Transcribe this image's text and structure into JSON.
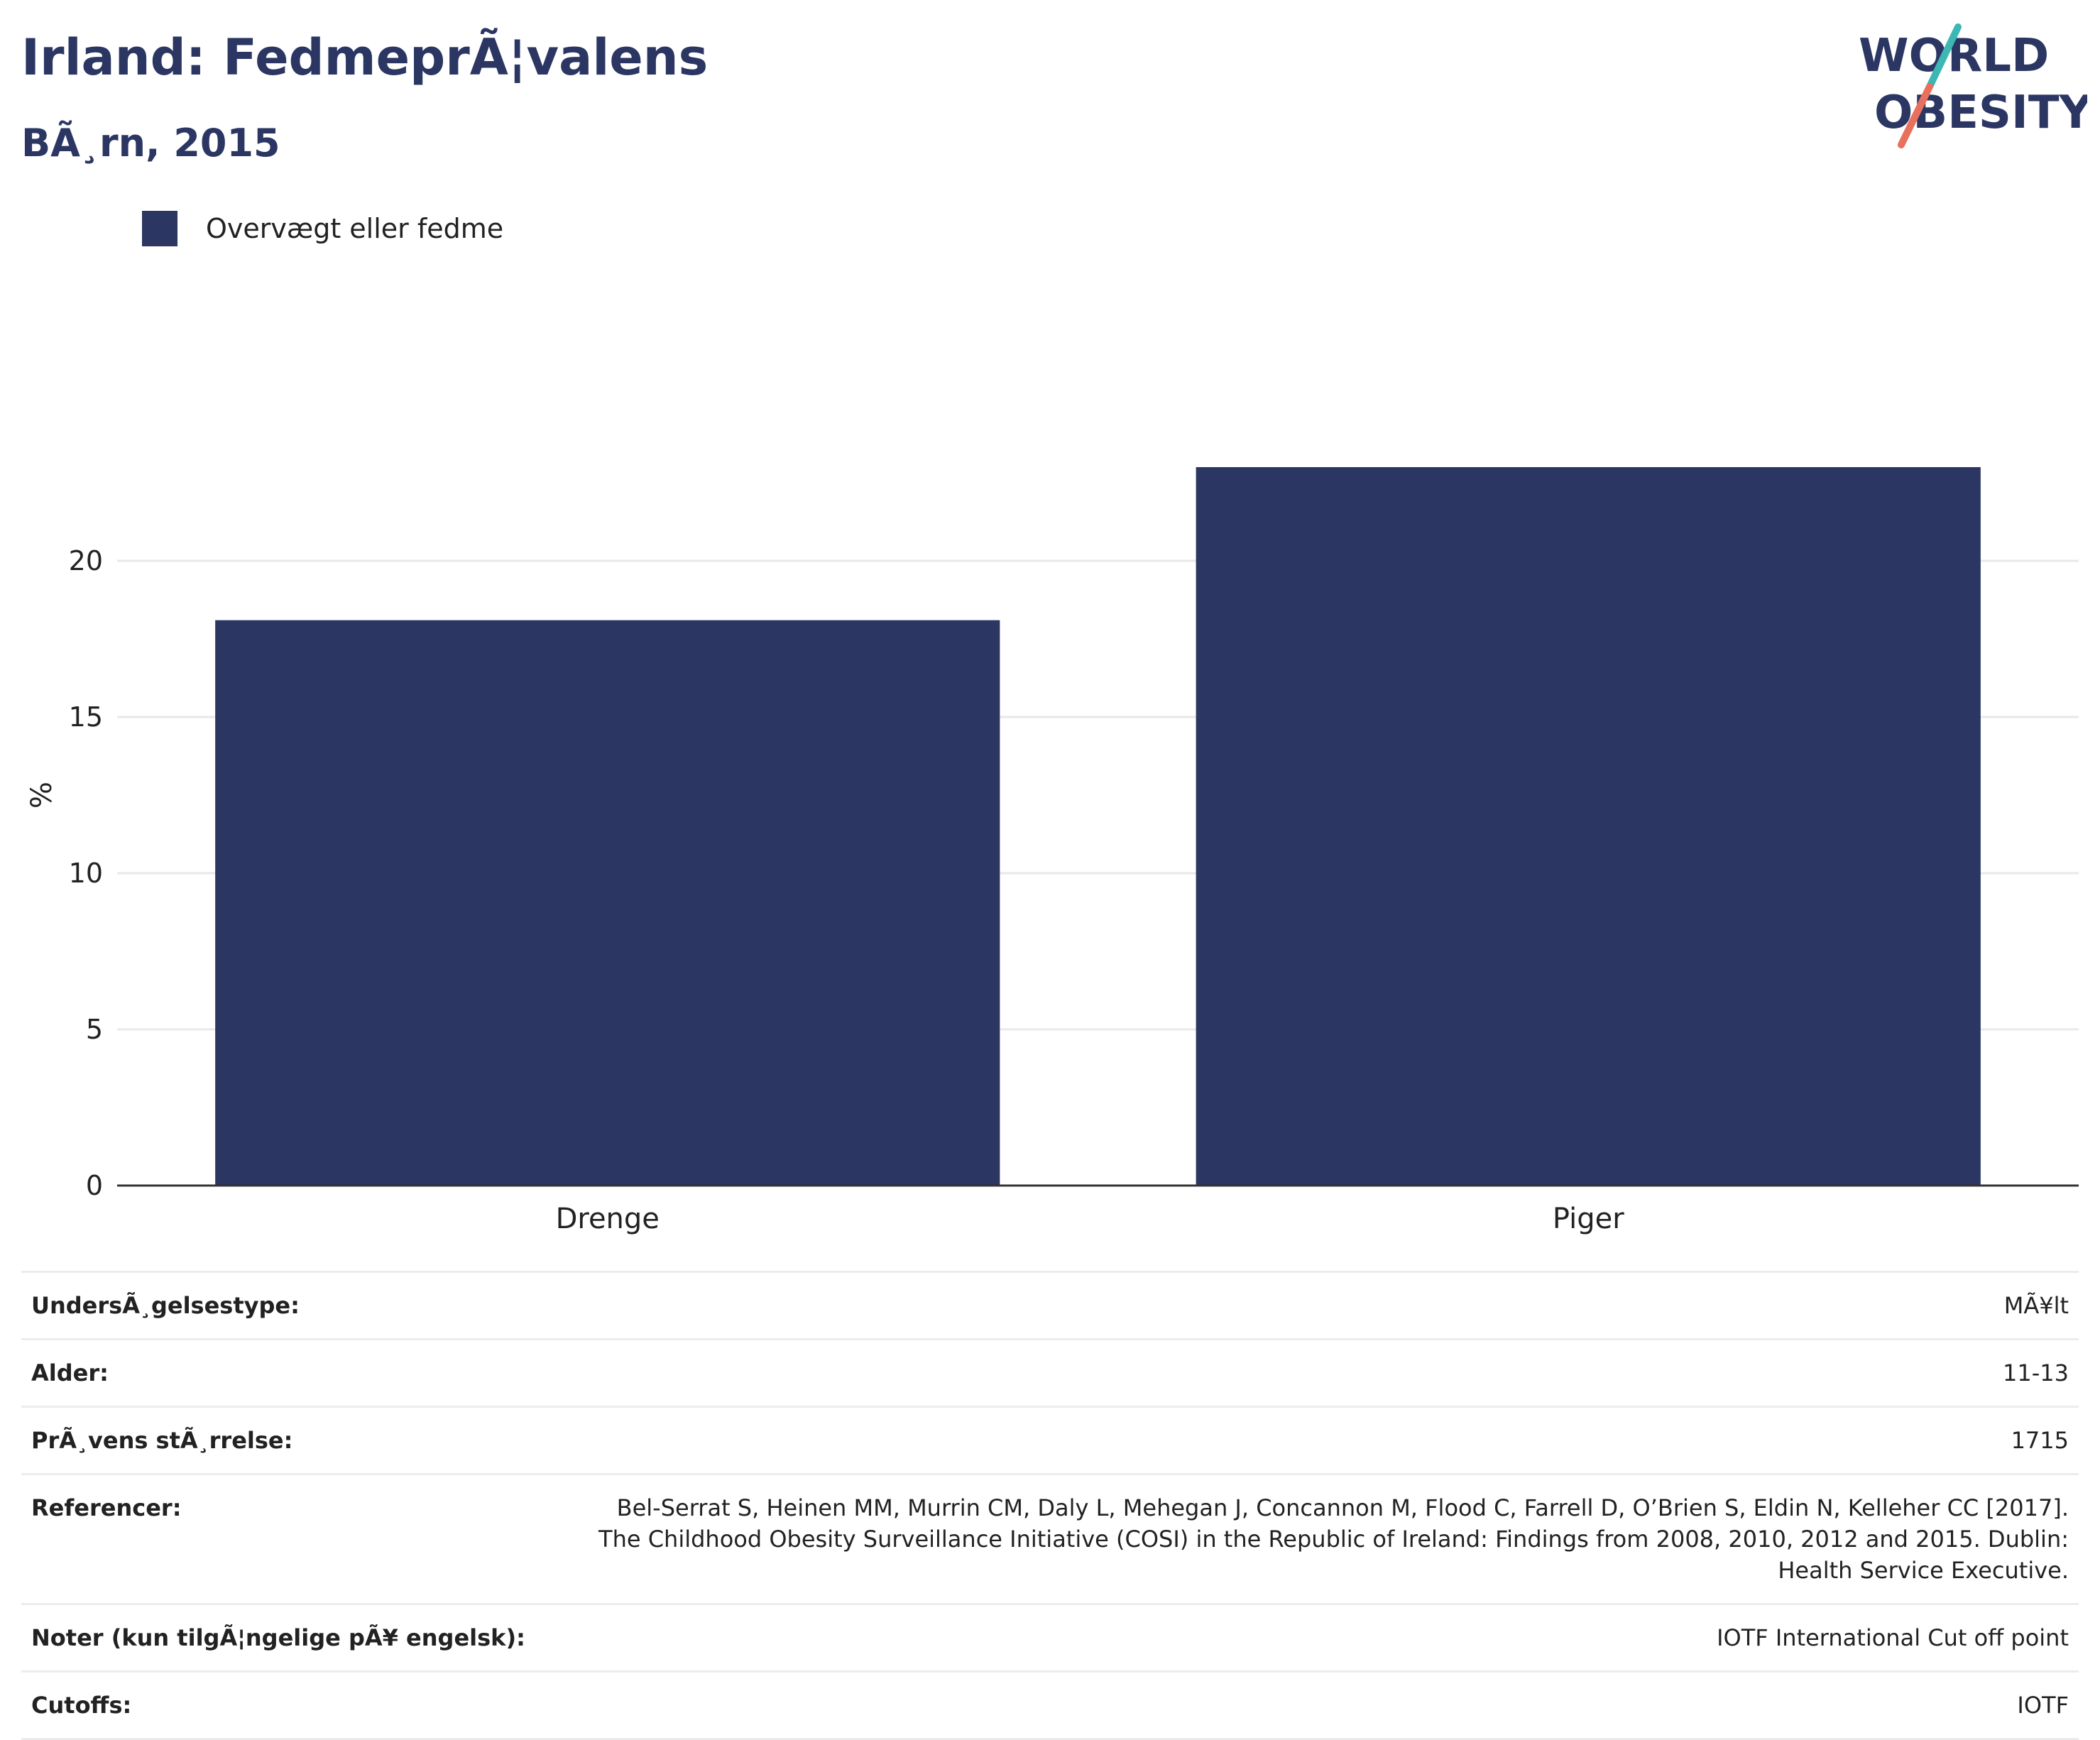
{
  "header": {
    "title": "Irland: FedmeprÃ¦valens",
    "subtitle": "BÃ¸rn, 2015"
  },
  "logo": {
    "line1": "WORLD",
    "line2": "OBESITY",
    "colors": {
      "text": "#2b3663",
      "slash_top": "#3cb7b3",
      "slash_bottom": "#e8705c"
    }
  },
  "colors": {
    "bar": "#2b3663",
    "grid": "#e8e8e8",
    "axis": "#333333"
  },
  "chart_data": {
    "type": "bar",
    "categories": [
      "Drenge",
      "Piger"
    ],
    "series": [
      {
        "name": "Overvægt eller fedme",
        "values": [
          18.1,
          23.0
        ]
      }
    ],
    "ylabel": "%",
    "ylim": [
      0,
      25
    ],
    "yticks": [
      0,
      5,
      10,
      15,
      20
    ],
    "grid": true,
    "legend_position": "top-left"
  },
  "info": {
    "rows": [
      {
        "label": "UndersÃ¸gelsestype:",
        "value": "MÃ¥lt"
      },
      {
        "label": "Alder:",
        "value": "11-13"
      },
      {
        "label": "PrÃ¸vens stÃ¸rrelse:",
        "value": "1715"
      },
      {
        "label": "Referencer:",
        "value": "Bel-Serrat S, Heinen MM, Murrin CM, Daly L, Mehegan J, Concannon M, Flood C, Farrell D, O’Brien S, Eldin N, Kelleher CC [2017]. The Childhood Obesity Surveillance Initiative (COSI) in the Republic of Ireland: Findings from 2008, 2010, 2012 and 2015. Dublin: Health Service Executive."
      },
      {
        "label": "Noter (kun tilgÃ¦ngelige pÃ¥ engelsk):",
        "value": "IOTF International Cut off point"
      },
      {
        "label": "Cutoffs:",
        "value": "IOTF"
      }
    ]
  }
}
